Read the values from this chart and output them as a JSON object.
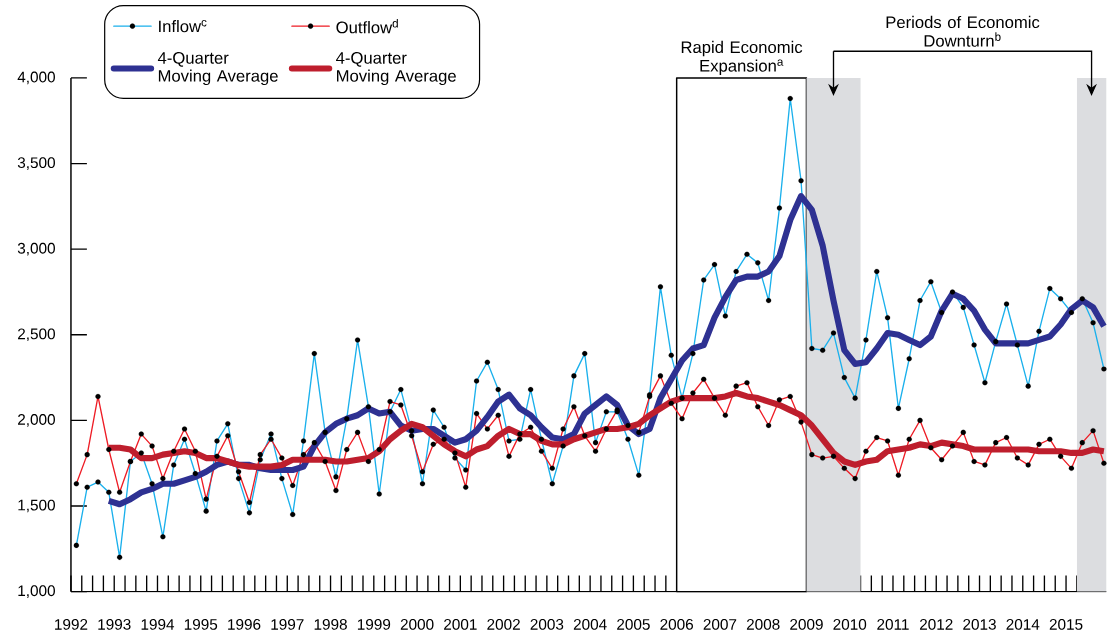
{
  "chart_data": {
    "type": "line",
    "x": [
      1992.125,
      1992.375,
      1992.625,
      1992.875,
      1993.125,
      1993.375,
      1993.625,
      1993.875,
      1994.125,
      1994.375,
      1994.625,
      1994.875,
      1995.125,
      1995.375,
      1995.625,
      1995.875,
      1996.125,
      1996.375,
      1996.625,
      1996.875,
      1997.125,
      1997.375,
      1997.625,
      1997.875,
      1998.125,
      1998.375,
      1998.625,
      1998.875,
      1999.125,
      1999.375,
      1999.625,
      1999.875,
      2000.125,
      2000.375,
      2000.625,
      2000.875,
      2001.125,
      2001.375,
      2001.625,
      2001.875,
      2002.125,
      2002.375,
      2002.625,
      2002.875,
      2003.125,
      2003.375,
      2003.625,
      2003.875,
      2004.125,
      2004.375,
      2004.625,
      2004.875,
      2005.125,
      2005.375,
      2005.625,
      2005.875,
      2006.125,
      2006.375,
      2006.625,
      2006.875,
      2007.125,
      2007.375,
      2007.625,
      2007.875,
      2008.125,
      2008.375,
      2008.625,
      2008.875,
      2009.125,
      2009.375,
      2009.625,
      2009.875,
      2010.125,
      2010.375,
      2010.625,
      2010.875,
      2011.125,
      2011.375,
      2011.625,
      2011.875,
      2012.125,
      2012.375,
      2012.625,
      2012.875,
      2013.125,
      2013.375,
      2013.625,
      2013.875,
      2014.125,
      2014.375,
      2014.625,
      2014.875,
      2015.125,
      2015.375,
      2015.625,
      2015.875
    ],
    "series": [
      {
        "name": "Inflow$^{c}$",
        "color": "#1ab0ec",
        "marker": "circle",
        "values": [
          1270,
          1610,
          1640,
          1580,
          1200,
          1760,
          1810,
          1630,
          1320,
          1740,
          1890,
          1690,
          1470,
          1880,
          1980,
          1660,
          1460,
          1770,
          1920,
          1660,
          1450,
          1880,
          2390,
          1930,
          1670,
          2010,
          2470,
          2080,
          1570,
          2050,
          2180,
          1940,
          1630,
          2060,
          1960,
          1780,
          1710,
          2230,
          2340,
          2180,
          1880,
          1890,
          2180,
          1890,
          1630,
          1850,
          2260,
          2390,
          1870,
          2050,
          2050,
          1890,
          1680,
          2150,
          2780,
          2380,
          2130,
          2390,
          2820,
          2910,
          2610,
          2870,
          2970,
          2920,
          2700,
          3240,
          3880,
          3400,
          2420,
          2410,
          2510,
          2250,
          2130,
          2470,
          2870,
          2600,
          2070,
          2360,
          2700,
          2810,
          2630,
          2750,
          2660,
          2440,
          2220,
          2460,
          2680,
          2440,
          2200,
          2520,
          2770,
          2710,
          2630,
          2710,
          2570,
          2300
        ]
      },
      {
        "name": "Outflow$^{d}$",
        "color": "#ee1c25",
        "marker": "circle",
        "values": [
          1630,
          1800,
          2140,
          1830,
          1580,
          1760,
          1920,
          1850,
          1660,
          1820,
          1950,
          1820,
          1540,
          1790,
          1910,
          1700,
          1520,
          1800,
          1890,
          1780,
          1620,
          1800,
          1870,
          1760,
          1590,
          1830,
          1930,
          1760,
          1830,
          2110,
          2090,
          1910,
          1700,
          1860,
          1890,
          1810,
          1610,
          2040,
          1950,
          2030,
          1790,
          1920,
          1960,
          1820,
          1720,
          1950,
          2080,
          1910,
          1820,
          1950,
          2060,
          1970,
          1930,
          2140,
          2260,
          2100,
          2010,
          2160,
          2240,
          2130,
          2030,
          2200,
          2220,
          2080,
          1970,
          2120,
          2140,
          1990,
          1800,
          1780,
          1790,
          1720,
          1660,
          1820,
          1900,
          1880,
          1680,
          1890,
          2000,
          1840,
          1770,
          1850,
          1930,
          1760,
          1740,
          1870,
          1900,
          1780,
          1740,
          1860,
          1890,
          1790,
          1720,
          1870,
          1940,
          1750
        ]
      },
      {
        "name": "4-Quarter Moving Average",
        "color": "#2e3192",
        "marker": "none",
        "values": [
          null,
          null,
          null,
          1530,
          1510,
          1540,
          1580,
          1600,
          1630,
          1630,
          1650,
          1670,
          1700,
          1740,
          1760,
          1740,
          1740,
          1720,
          1710,
          1710,
          1710,
          1730,
          1850,
          1930,
          1980,
          2010,
          2030,
          2070,
          2040,
          2050,
          1970,
          1940,
          1950,
          1950,
          1910,
          1870,
          1890,
          1940,
          2020,
          2110,
          2150,
          2070,
          2030,
          1960,
          1900,
          1890,
          1920,
          2040,
          2090,
          2140,
          2090,
          1970,
          1920,
          1950,
          2130,
          2240,
          2350,
          2420,
          2440,
          2600,
          2720,
          2820,
          2840,
          2840,
          2870,
          2960,
          3170,
          3310,
          3230,
          3020,
          2700,
          2410,
          2330,
          2340,
          2420,
          2510,
          2500,
          2470,
          2440,
          2490,
          2640,
          2740,
          2710,
          2640,
          2530,
          2450,
          2450,
          2450,
          2450,
          2470,
          2490,
          2560,
          2650,
          2700,
          2660,
          2550
        ]
      },
      {
        "name": "4-Quarter Moving Average",
        "color": "#be1e2d",
        "marker": "none",
        "values": [
          null,
          null,
          null,
          1840,
          1840,
          1830,
          1780,
          1780,
          1800,
          1810,
          1820,
          1810,
          1780,
          1780,
          1760,
          1740,
          1730,
          1730,
          1730,
          1740,
          1770,
          1770,
          1770,
          1770,
          1760,
          1760,
          1770,
          1780,
          1820,
          1890,
          1940,
          1980,
          1960,
          1910,
          1860,
          1820,
          1790,
          1830,
          1850,
          1910,
          1950,
          1920,
          1920,
          1880,
          1860,
          1860,
          1890,
          1910,
          1930,
          1950,
          1950,
          1960,
          1980,
          2030,
          2070,
          2110,
          2130,
          2130,
          2130,
          2130,
          2140,
          2160,
          2140,
          2130,
          2110,
          2090,
          2060,
          2030,
          1970,
          1890,
          1810,
          1760,
          1740,
          1760,
          1770,
          1820,
          1830,
          1840,
          1860,
          1850,
          1870,
          1860,
          1850,
          1830,
          1830,
          1830,
          1830,
          1830,
          1830,
          1820,
          1820,
          1820,
          1810,
          1810,
          1830,
          1820
        ]
      }
    ],
    "xlim": [
      1992.0,
      2015.93
    ],
    "ylim": [
      1000,
      4000
    ],
    "xticks": [
      1992,
      {
        "value": 1992.25,
        "label": null
      },
      {
        "value": 1992.5,
        "label": null
      },
      {
        "value": 1992.75,
        "label": null
      },
      1993,
      {
        "value": 1993.25,
        "label": null
      },
      {
        "value": 1993.5,
        "label": null
      },
      {
        "value": 1993.75,
        "label": null
      },
      1994,
      {
        "value": 1994.25,
        "label": null
      },
      {
        "value": 1994.5,
        "label": null
      },
      {
        "value": 1994.75,
        "label": null
      },
      1995,
      {
        "value": 1995.25,
        "label": null
      },
      {
        "value": 1995.5,
        "label": null
      },
      {
        "value": 1995.75,
        "label": null
      },
      1996,
      {
        "value": 1996.25,
        "label": null
      },
      {
        "value": 1996.5,
        "label": null
      },
      {
        "value": 1996.75,
        "label": null
      },
      1997,
      {
        "value": 1997.25,
        "label": null
      },
      {
        "value": 1997.5,
        "label": null
      },
      {
        "value": 1997.75,
        "label": null
      },
      1998,
      {
        "value": 1998.25,
        "label": null
      },
      {
        "value": 1998.5,
        "label": null
      },
      {
        "value": 1998.75,
        "label": null
      },
      1999,
      {
        "value": 1999.25,
        "label": null
      },
      {
        "value": 1999.5,
        "label": null
      },
      {
        "value": 1999.75,
        "label": null
      },
      2000,
      {
        "value": 2000.25,
        "label": null
      },
      {
        "value": 2000.5,
        "label": null
      },
      {
        "value": 2000.75,
        "label": null
      },
      2001,
      {
        "value": 2001.25,
        "label": null
      },
      {
        "value": 2001.5,
        "label": null
      },
      {
        "value": 2001.75,
        "label": null
      },
      2002,
      {
        "value": 2002.25,
        "label": null
      },
      {
        "value": 2002.5,
        "label": null
      },
      {
        "value": 2002.75,
        "label": null
      },
      2003,
      {
        "value": 2003.25,
        "label": null
      },
      {
        "value": 2003.5,
        "label": null
      },
      {
        "value": 2003.75,
        "label": null
      },
      2004,
      {
        "value": 2004.25,
        "label": null
      },
      {
        "value": 2004.5,
        "label": null
      },
      {
        "value": 2004.75,
        "label": null
      },
      2005,
      {
        "value": 2005.25,
        "label": null
      },
      {
        "value": 2005.5,
        "label": null
      },
      {
        "value": 2005.75,
        "label": null
      },
      2006,
      {
        "value": 2006.25,
        "label": null
      },
      {
        "value": 2006.5,
        "label": null
      },
      {
        "value": 2006.75,
        "label": null
      },
      2007,
      {
        "value": 2007.25,
        "label": null
      },
      {
        "value": 2007.5,
        "label": null
      },
      {
        "value": 2007.75,
        "label": null
      },
      2008,
      {
        "value": 2008.25,
        "label": null
      },
      {
        "value": 2008.5,
        "label": null
      },
      {
        "value": 2008.75,
        "label": null
      },
      2009,
      {
        "value": 2009.25,
        "label": null
      },
      {
        "value": 2009.5,
        "label": null
      },
      {
        "value": 2009.75,
        "label": null
      },
      2010,
      {
        "value": 2010.25,
        "label": null
      },
      {
        "value": 2010.5,
        "label": null
      },
      {
        "value": 2010.75,
        "label": null
      },
      2011,
      {
        "value": 2011.25,
        "label": null
      },
      {
        "value": 2011.5,
        "label": null
      },
      {
        "value": 2011.75,
        "label": null
      },
      2012,
      {
        "value": 2012.25,
        "label": null
      },
      {
        "value": 2012.5,
        "label": null
      },
      {
        "value": 2012.75,
        "label": null
      },
      2013,
      {
        "value": 2013.25,
        "label": null
      },
      {
        "value": 2013.5,
        "label": null
      },
      {
        "value": 2013.75,
        "label": null
      },
      2014,
      {
        "value": 2014.25,
        "label": null
      },
      {
        "value": 2014.5,
        "label": null
      },
      {
        "value": 2014.75,
        "label": null
      },
      2015,
      {
        "value": 2015.25,
        "label": null
      },
      {
        "value": 2015.5,
        "label": null
      },
      {
        "value": 2015.75,
        "label": null
      }
    ],
    "yticks": [
      {
        "value": 1000,
        "label": "1,000"
      },
      {
        "value": 1500,
        "label": "1,500"
      },
      {
        "value": 2000,
        "label": "2,000"
      },
      {
        "value": 2500,
        "label": "2,500"
      },
      {
        "value": 3000,
        "label": "3,000"
      },
      {
        "value": 3500,
        "label": "3,500"
      },
      {
        "value": 4000,
        "label": "4,000"
      }
    ],
    "bands": [
      {
        "axis": "x",
        "from": 2006.0,
        "to": 2009.0,
        "label": "Rapid Economic Expansion$^{a}$",
        "color": "#ffffff"
      },
      {
        "axis": "x",
        "from": 2009.0,
        "to": 2010.25,
        "color": "#dcdde0"
      },
      {
        "axis": "x",
        "from": 2015.25,
        "to": 2015.93,
        "color": "#dcdde0"
      }
    ],
    "annotations": [
      "Periods of Economic Downturn$^{b}$"
    ],
    "legend": "top left"
  }
}
